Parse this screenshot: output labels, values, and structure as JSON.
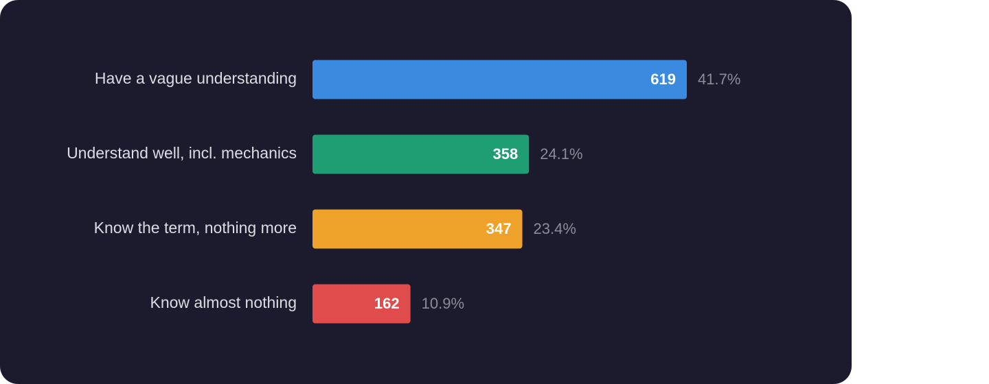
{
  "chart_data": {
    "type": "bar",
    "orientation": "horizontal",
    "categories": [
      "Have a vague understanding",
      "Understand well, incl. mechanics",
      "Know the term, nothing more",
      "Know almost nothing"
    ],
    "values": [
      619,
      358,
      347,
      162
    ],
    "colors": [
      "#3a8ae0",
      "#1f9e74",
      "#eea22a",
      "#e04b4b"
    ],
    "share_labels": [
      "41.7%",
      "24.1%",
      "23.4%",
      "10.9%"
    ]
  }
}
